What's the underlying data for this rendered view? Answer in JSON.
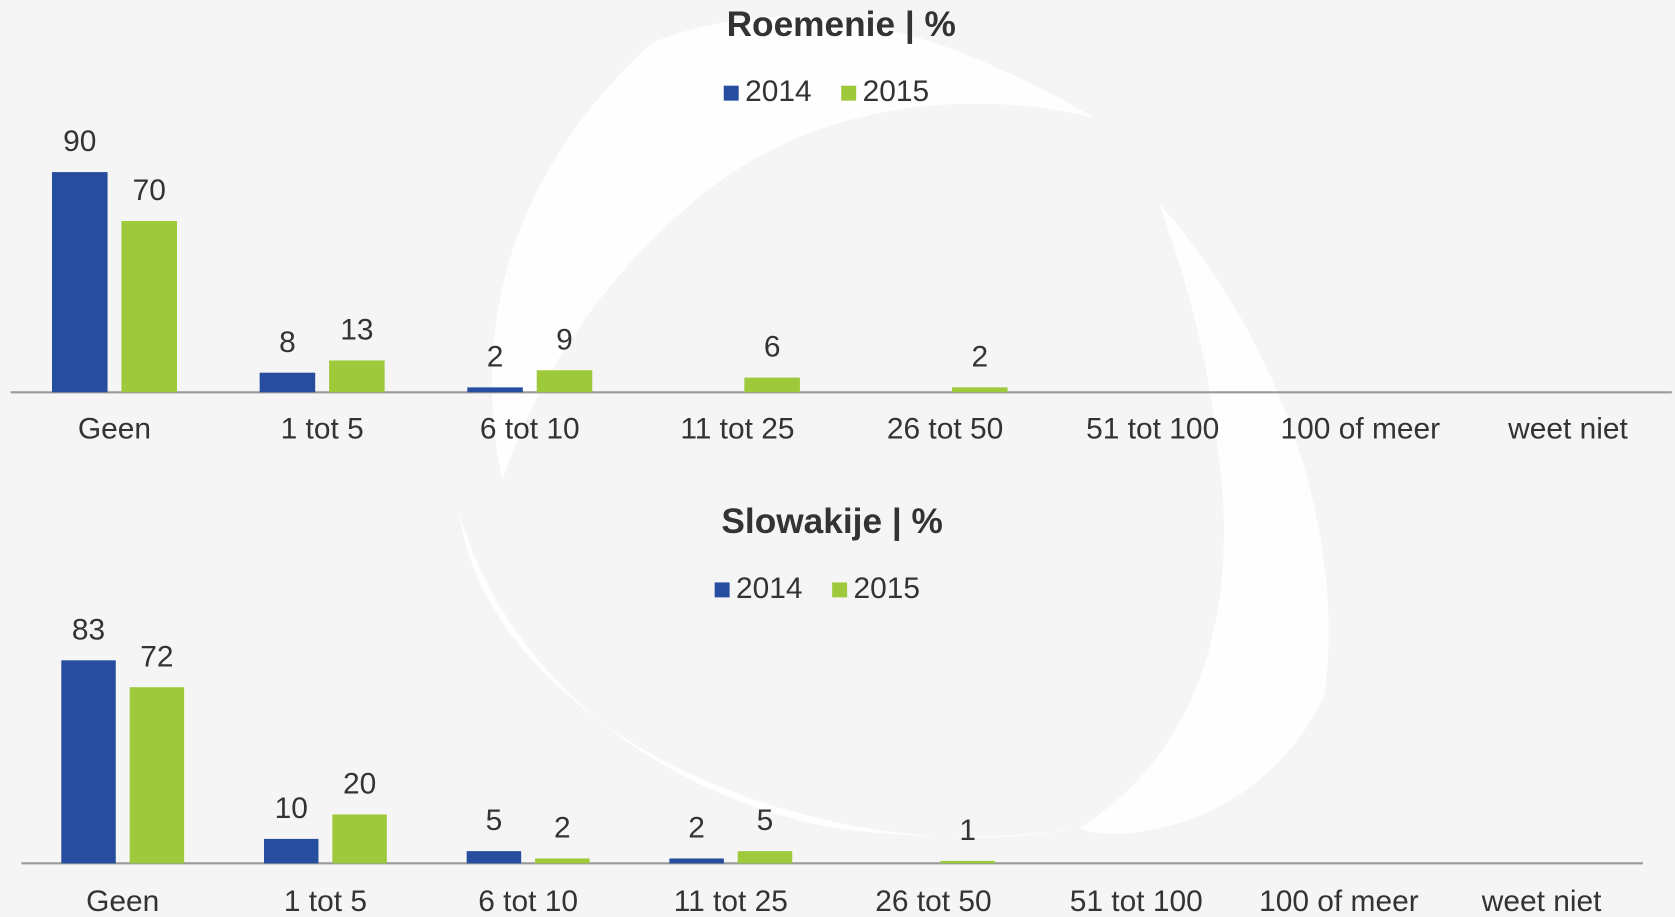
{
  "chart_data": [
    {
      "type": "bar",
      "title": "Roemenie | %",
      "categories": [
        "Geen",
        "1 tot 5",
        "6 tot 10",
        "11 tot 25",
        "26 tot 50",
        "51 tot 100",
        "100 of meer",
        "weet niet"
      ],
      "series": [
        {
          "name": "2014",
          "color": "#264d9e",
          "values": [
            90,
            8,
            2,
            null,
            null,
            null,
            null,
            null
          ]
        },
        {
          "name": "2015",
          "color": "#9dc93b",
          "values": [
            70,
            13,
            9,
            6,
            2,
            null,
            null,
            null
          ]
        }
      ],
      "legend": "top"
    },
    {
      "type": "bar",
      "title": "Slowakije | %",
      "categories": [
        "Geen",
        "1 tot 5",
        "6 tot 10",
        "11 tot 25",
        "26 tot 50",
        "51 tot 100",
        "100 of meer",
        "weet niet"
      ],
      "series": [
        {
          "name": "2014",
          "color": "#264d9e",
          "values": [
            83,
            10,
            5,
            2,
            null,
            null,
            null,
            null
          ]
        },
        {
          "name": "2015",
          "color": "#9dc93b",
          "values": [
            72,
            20,
            2,
            5,
            1,
            null,
            null,
            null
          ]
        }
      ],
      "legend": "top"
    }
  ]
}
